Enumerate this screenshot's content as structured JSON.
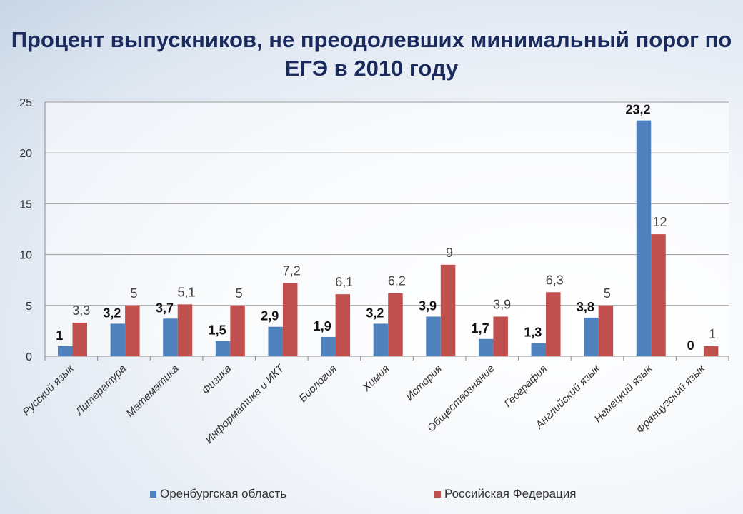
{
  "chart_data": {
    "type": "bar",
    "title": "Процент выпускников, не преодолевших минимальный порог по ЕГЭ в 2010 году",
    "categories": [
      "Русский язык",
      "Литература",
      "Математика",
      "Физика",
      "Информатика и ИКТ",
      "Биология",
      "Химия",
      "История",
      "Обществознание",
      "География",
      "Английский язык",
      "Немецкий язык",
      "Французский язык"
    ],
    "series": [
      {
        "name": "Оренбургская область",
        "color": "#4f81bd",
        "values": [
          1,
          3.2,
          3.7,
          1.5,
          2.9,
          1.9,
          3.2,
          3.9,
          1.7,
          1.3,
          3.8,
          23.2,
          0
        ],
        "labels": [
          "1",
          "3,2",
          "3,7",
          "1,5",
          "2,9",
          "1,9",
          "3,2",
          "3,9",
          "1,7",
          "1,3",
          "3,8",
          "23,2",
          "0"
        ]
      },
      {
        "name": "Российская Федерация",
        "color": "#c0504d",
        "values": [
          3.3,
          5,
          5.1,
          5,
          7.2,
          6.1,
          6.2,
          9,
          3.9,
          6.3,
          5,
          12,
          1
        ],
        "labels": [
          "3,3",
          "5",
          "5,1",
          "5",
          "7,2",
          "6,1",
          "6,2",
          "9",
          "3,9",
          "6,3",
          "5",
          "12",
          "1"
        ]
      }
    ],
    "ylim": [
      0,
      25
    ],
    "yticks": [
      "0",
      "5",
      "10",
      "15",
      "20",
      "25"
    ],
    "grid": true,
    "legend_position": "bottom"
  }
}
